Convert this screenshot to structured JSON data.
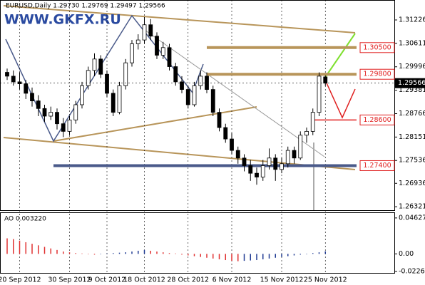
{
  "chart_data": [
    {
      "type": "candlestick",
      "title": "EURUSD,Daily  1.29730 1.29769 1.29497 1.29566",
      "watermark": "WWW.GKFX.RU",
      "categories": [
        null,
        null,
        "20 Sep 2012",
        null,
        null,
        null,
        null,
        null,
        null,
        null,
        "30 Sep 2012",
        null,
        null,
        null,
        null,
        null,
        "9 Oct 2012",
        null,
        null,
        null,
        null,
        null,
        "18 Oct 2012",
        null,
        null,
        null,
        null,
        null,
        null,
        "28 Oct 2012",
        null,
        null,
        null,
        null,
        null,
        null,
        "6 Nov 2012",
        null,
        null,
        null,
        null,
        null,
        null,
        null,
        "15 Nov 2012",
        null,
        null,
        null,
        null,
        null,
        null,
        "25 Nov 2012"
      ],
      "series": [
        {
          "name": "EURUSD",
          "open": [
            1.2985,
            1.2975,
            1.296,
            1.2955,
            1.293,
            1.291,
            1.289,
            1.287,
            1.288,
            1.285,
            1.283,
            1.286,
            1.29,
            1.295,
            1.299,
            1.302,
            1.298,
            1.293,
            1.288,
            1.295,
            1.301,
            1.306,
            1.307,
            1.311,
            1.308,
            1.303,
            1.305,
            1.3,
            1.296,
            1.294,
            1.29,
            1.295,
            1.2975,
            1.294,
            1.288,
            1.284,
            1.281,
            1.278,
            1.276,
            1.274,
            1.272,
            1.271,
            1.274,
            1.276,
            1.273,
            1.2745,
            1.278,
            1.276,
            1.282,
            1.283,
            1.288,
            1.2973
          ],
          "high": [
            1.2995,
            1.299,
            1.2985,
            1.2965,
            1.2945,
            1.2925,
            1.29,
            1.2895,
            1.289,
            1.2865,
            1.287,
            1.291,
            1.296,
            1.3,
            1.3035,
            1.303,
            1.299,
            1.294,
            1.296,
            1.302,
            1.307,
            1.3085,
            1.313,
            1.3125,
            1.309,
            1.3065,
            1.306,
            1.301,
            1.2975,
            1.295,
            1.296,
            1.299,
            1.2985,
            1.295,
            1.289,
            1.285,
            1.2825,
            1.279,
            1.277,
            1.2755,
            1.2735,
            1.2755,
            1.2785,
            1.277,
            1.276,
            1.279,
            1.279,
            1.283,
            1.284,
            1.289,
            1.2985,
            1.29769
          ],
          "low": [
            1.2965,
            1.295,
            1.294,
            1.2915,
            1.2895,
            1.287,
            1.2855,
            1.286,
            1.2835,
            1.2815,
            1.282,
            1.285,
            1.289,
            1.294,
            1.2975,
            1.297,
            1.292,
            1.287,
            1.2875,
            1.294,
            1.3,
            1.3045,
            1.306,
            1.307,
            1.302,
            1.302,
            1.299,
            1.295,
            1.293,
            1.289,
            1.2895,
            1.294,
            1.293,
            1.287,
            1.283,
            1.28,
            1.277,
            1.2745,
            1.2725,
            1.27,
            1.269,
            1.27,
            1.273,
            1.27,
            1.272,
            1.2735,
            1.2745,
            1.2755,
            1.28,
            1.282,
            1.287,
            1.29497
          ],
          "close": [
            1.2975,
            1.296,
            1.2955,
            1.293,
            1.291,
            1.289,
            1.287,
            1.288,
            1.285,
            1.283,
            1.286,
            1.29,
            1.295,
            1.299,
            1.302,
            1.298,
            1.293,
            1.288,
            1.295,
            1.301,
            1.306,
            1.307,
            1.311,
            1.308,
            1.303,
            1.305,
            1.3,
            1.296,
            1.294,
            1.29,
            1.295,
            1.2975,
            1.294,
            1.288,
            1.284,
            1.281,
            1.278,
            1.276,
            1.274,
            1.272,
            1.271,
            1.274,
            1.276,
            1.273,
            1.2745,
            1.278,
            1.276,
            1.282,
            1.283,
            1.288,
            1.2975,
            1.29566
          ]
        }
      ],
      "current_price": 1.29566,
      "levels": [
        {
          "value": 1.305,
          "label": "1.30500",
          "color": "#b8955a"
        },
        {
          "value": 1.298,
          "label": "1.29800",
          "color": "#b8955a"
        },
        {
          "value": 1.286,
          "label": "1.28600",
          "color": "#e02020"
        },
        {
          "value": 1.274,
          "label": "1.27400",
          "color": "#4a5a8a"
        }
      ],
      "ylim": [
        1.2623,
        1.3175
      ],
      "yticks": [
        1.31226,
        1.30611,
        1.29996,
        1.29381,
        1.28766,
        1.28151,
        1.27536,
        1.26936,
        1.26321
      ],
      "grid": true
    },
    {
      "type": "bar",
      "title": "AO 0.003220",
      "values": [
        0.02,
        0.019,
        0.017,
        0.015,
        0.013,
        0.011,
        0.009,
        0.007,
        0.005,
        0.003,
        0.002,
        0.001,
        0.0005,
        -0.0005,
        -0.001,
        -0.0005,
        0.0005,
        0.001,
        0.0015,
        0.002,
        0.003,
        0.004,
        0.005,
        0.004,
        0.003,
        0.002,
        0.001,
        0.0005,
        -0.001,
        -0.002,
        -0.003,
        -0.004,
        -0.005,
        -0.006,
        -0.007,
        -0.008,
        -0.009,
        -0.0095,
        -0.009,
        -0.0085,
        -0.008,
        -0.007,
        -0.006,
        -0.005,
        -0.004,
        -0.003,
        -0.002,
        -0.001,
        -0.0005,
        0.001,
        0.002,
        0.00322
      ],
      "up_color": "#1f3a93",
      "down_color": "#e03030",
      "ylim": [
        -0.0245,
        0.0535
      ],
      "yticks": [
        0.046272,
        {
          "value": 0,
          "label": "0.00"
        },
        -0.02268
      ]
    }
  ]
}
